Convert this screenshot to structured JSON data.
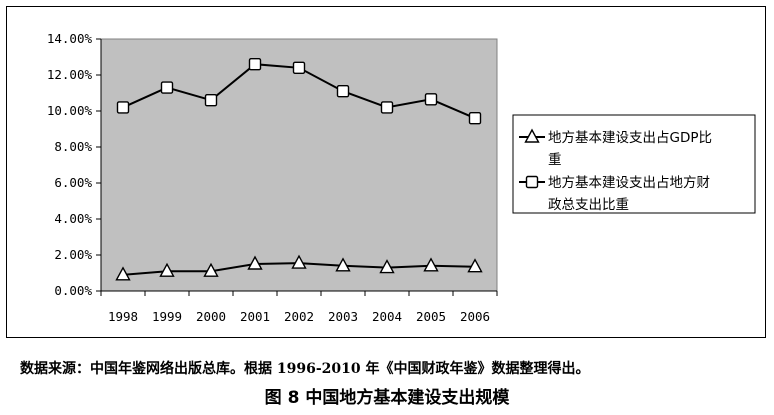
{
  "chart_data": {
    "type": "line",
    "title": "",
    "xlabel": "",
    "ylabel": "",
    "categories": [
      "1998",
      "1999",
      "2000",
      "2001",
      "2002",
      "2003",
      "2004",
      "2005",
      "2006"
    ],
    "yticks": [
      "14.00%",
      "12.00%",
      "10.00%",
      "8.00%",
      "6.00%",
      "4.00%",
      "2.00%",
      "0.00%"
    ],
    "ylim": [
      0,
      14
    ],
    "y_unit": "%",
    "grid": false,
    "plot_background": "#c0c0c0",
    "legend_position": "right",
    "legend": [
      [
        "地方基本建设支出占GDP比",
        "重"
      ],
      [
        "地方基本建设支出占地方财",
        "政总支出比重"
      ]
    ],
    "series": [
      {
        "marker": "triangle",
        "values": [
          0.9,
          1.1,
          1.1,
          1.5,
          1.55,
          1.4,
          1.3,
          1.4,
          1.35
        ]
      },
      {
        "marker": "square",
        "values": [
          10.2,
          11.3,
          10.6,
          12.6,
          12.4,
          11.1,
          10.2,
          10.65,
          9.6
        ]
      }
    ]
  },
  "source_note": "数据来源：中国年鉴网络出版总库。根据 1996-2010 年《中国财政年鉴》数据整理得出。",
  "figure_caption": "图 8   中国地方基本建设支出规模"
}
